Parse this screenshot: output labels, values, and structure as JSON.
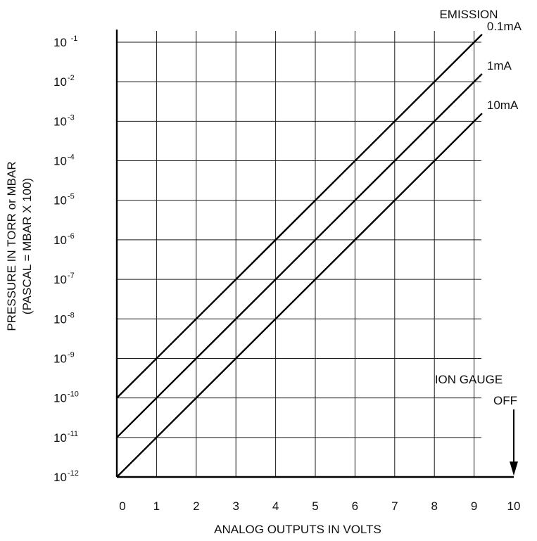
{
  "chart_data": {
    "type": "line",
    "xlabel": "ANALOG OUTPUTS IN VOLTS",
    "ylabel": "PRESSURE IN TORR or MBAR",
    "ylabel2": "(PASCAL = MBAR X 100)",
    "legend_title": "EMISSION",
    "xlim": [
      0,
      10
    ],
    "ylim": [
      1e-12,
      0.1
    ],
    "y_scale": "log",
    "grid": true,
    "x_ticks": [
      "0",
      "1",
      "2",
      "3",
      "4",
      "5",
      "6",
      "7",
      "8",
      "9",
      "10"
    ],
    "y_ticks": [
      {
        "base": "10",
        "exp": "-12"
      },
      {
        "base": "10",
        "exp": "-11"
      },
      {
        "base": "10",
        "exp": "-10"
      },
      {
        "base": "10",
        "exp": "-9"
      },
      {
        "base": "10",
        "exp": "-8"
      },
      {
        "base": "10",
        "exp": "-7"
      },
      {
        "base": "10",
        "exp": "-6"
      },
      {
        "base": "10",
        "exp": "-5"
      },
      {
        "base": "10",
        "exp": "-4"
      },
      {
        "base": "10",
        "exp": "-3"
      },
      {
        "base": "10",
        "exp": "-2"
      },
      {
        "base": "10 ",
        "exp": "-1"
      }
    ],
    "series": [
      {
        "name": "0.1mA",
        "x": [
          0,
          9.2
        ],
        "y": [
          1e-10,
          0.158
        ]
      },
      {
        "name": "1mA",
        "x": [
          0,
          9.2
        ],
        "y": [
          1e-11,
          0.0158
        ]
      },
      {
        "name": "10mA",
        "x": [
          0,
          9.2
        ],
        "y": [
          1e-12,
          0.00158
        ]
      }
    ],
    "annotation": {
      "lines": [
        "ION GAUGE",
        "OFF"
      ],
      "x": 10,
      "y": 1e-12
    }
  }
}
